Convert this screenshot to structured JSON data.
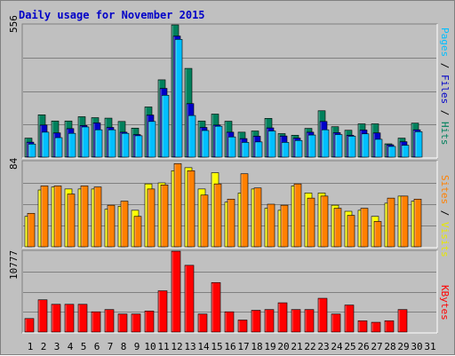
{
  "chart_data": [
    {
      "type": "bar",
      "title": "Daily usage for November 2015",
      "ymax_label": "556",
      "ymax": 556,
      "right_label": {
        "hits": "Hits",
        "files": "Files",
        "pages": "Pages",
        "sep": " / "
      },
      "categories": [
        "1",
        "2",
        "3",
        "4",
        "5",
        "6",
        "7",
        "8",
        "9",
        "10",
        "11",
        "12",
        "13",
        "14",
        "15",
        "16",
        "17",
        "18",
        "19",
        "20",
        "21",
        "22",
        "23",
        "24",
        "25",
        "26",
        "27",
        "28",
        "29",
        "30",
        "31"
      ],
      "weekend_days": [
        "1",
        "7",
        "8",
        "14",
        "15",
        "21",
        "22",
        "28",
        "29"
      ],
      "series": [
        {
          "name": "Hits",
          "color": "#00805c",
          "values": [
            80,
            178,
            152,
            152,
            170,
            166,
            164,
            150,
            122,
            211,
            325,
            556,
            373,
            152,
            181,
            151,
            105,
            110,
            163,
            99,
            92,
            121,
            195,
            128,
            113,
            140,
            140,
            56,
            80,
            143,
            0
          ]
        },
        {
          "name": "Files",
          "color": "#0000c8",
          "values": [
            63,
            135,
            102,
            120,
            133,
            144,
            125,
            105,
            95,
            177,
            289,
            509,
            225,
            125,
            135,
            105,
            78,
            88,
            123,
            89,
            80,
            105,
            150,
            103,
            92,
            114,
            102,
            52,
            65,
            115,
            0
          ]
        },
        {
          "name": "Pages",
          "color": "#00bfff",
          "values": [
            55,
            105,
            82,
            100,
            127,
            115,
            115,
            100,
            90,
            150,
            260,
            495,
            175,
            112,
            130,
            85,
            62,
            64,
            110,
            62,
            70,
            93,
            115,
            95,
            88,
            98,
            75,
            45,
            50,
            107,
            0
          ]
        }
      ]
    },
    {
      "type": "bar",
      "ymax_label": "84",
      "ymax": 84,
      "right_label": {
        "visits": "Visits",
        "sites": "Sites",
        "sep": " / "
      },
      "categories": [
        "1",
        "2",
        "3",
        "4",
        "5",
        "6",
        "7",
        "8",
        "9",
        "10",
        "11",
        "12",
        "13",
        "14",
        "15",
        "16",
        "17",
        "18",
        "19",
        "20",
        "21",
        "22",
        "23",
        "24",
        "25",
        "26",
        "27",
        "28",
        "29",
        "30",
        "31"
      ],
      "series": [
        {
          "name": "Visits",
          "color": "#ffff00",
          "values": [
            30,
            56,
            59,
            57,
            57,
            57,
            37,
            40,
            36,
            62,
            63,
            75,
            78,
            57,
            73,
            44,
            53,
            57,
            38,
            36,
            60,
            53,
            53,
            41,
            35,
            36,
            30,
            43,
            50,
            45,
            0
          ]
        },
        {
          "name": "Sites",
          "color": "#ff8000",
          "values": [
            33,
            60,
            60,
            52,
            60,
            59,
            41,
            45,
            30,
            57,
            61,
            82,
            75,
            51,
            62,
            47,
            72,
            58,
            42,
            41,
            62,
            48,
            50,
            38,
            31,
            38,
            25,
            48,
            50,
            47,
            0
          ]
        }
      ]
    },
    {
      "type": "bar",
      "ymax_label": "10777",
      "ymax": 10777,
      "right_label": {
        "kbytes": "KBytes"
      },
      "categories": [
        "1",
        "2",
        "3",
        "4",
        "5",
        "6",
        "7",
        "8",
        "9",
        "10",
        "11",
        "12",
        "13",
        "14",
        "15",
        "16",
        "17",
        "18",
        "19",
        "20",
        "21",
        "22",
        "23",
        "24",
        "25",
        "26",
        "27",
        "28",
        "29",
        "30",
        "31"
      ],
      "series": [
        {
          "name": "KBytes",
          "color": "#ff0000",
          "values": [
            1800,
            4300,
            3700,
            3700,
            3700,
            2700,
            3000,
            2400,
            2400,
            2800,
            5500,
            10777,
            8900,
            2400,
            6600,
            2700,
            1600,
            2900,
            3000,
            3900,
            3000,
            3000,
            4500,
            2400,
            3600,
            1500,
            1300,
            1500,
            3000,
            0,
            0
          ]
        }
      ]
    }
  ]
}
